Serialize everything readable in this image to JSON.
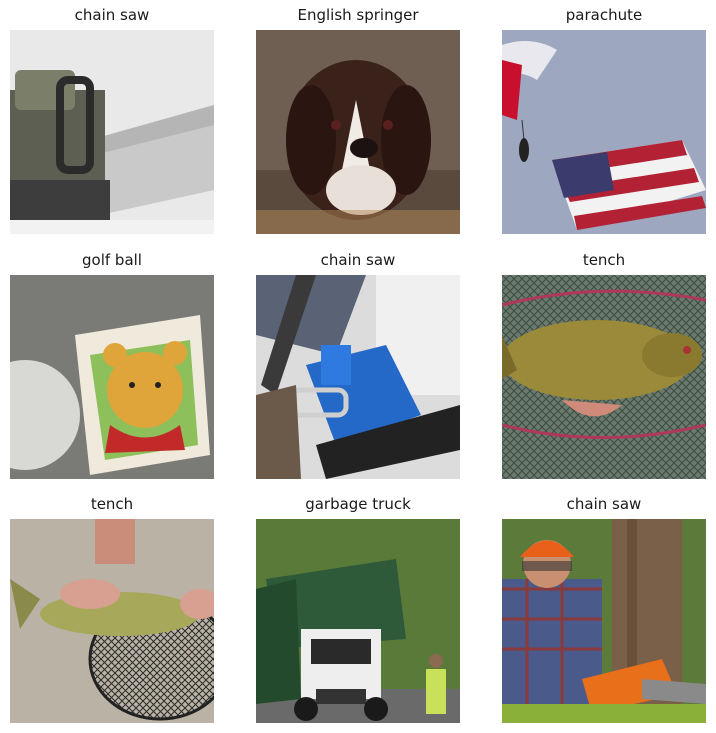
{
  "grid": {
    "cells": [
      {
        "label": "chain saw",
        "picture": "chainsaw-product-photo"
      },
      {
        "label": "English springer",
        "picture": "spaniel-swimming-photo"
      },
      {
        "label": "parachute",
        "picture": "parachutist-with-flag-photo"
      },
      {
        "label": "golf ball",
        "picture": "golf-ball-with-pooh-box-photo"
      },
      {
        "label": "chain saw",
        "picture": "blue-chainsaw-closeup-photo"
      },
      {
        "label": "tench",
        "picture": "tench-in-net-photo"
      },
      {
        "label": "tench",
        "picture": "tench-held-over-net-photo"
      },
      {
        "label": "garbage truck",
        "picture": "green-garbage-truck-photo"
      },
      {
        "label": "chain saw",
        "picture": "lumberjack-with-chainsaw-photo"
      }
    ]
  }
}
